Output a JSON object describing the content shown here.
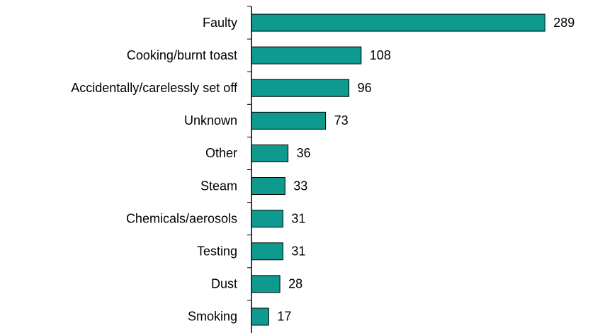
{
  "chart_data": {
    "type": "barh",
    "categories": [
      "Faulty",
      "Cooking/burnt toast",
      "Accidentally/carelessly set off",
      "Unknown",
      "Other",
      "Steam",
      "Chemicals/aerosols",
      "Testing",
      "Dust",
      "Smoking"
    ],
    "values": [
      289,
      108,
      96,
      73,
      36,
      33,
      31,
      31,
      28,
      17
    ],
    "color": "#0f9a8f",
    "xlim": [
      0,
      300
    ]
  }
}
